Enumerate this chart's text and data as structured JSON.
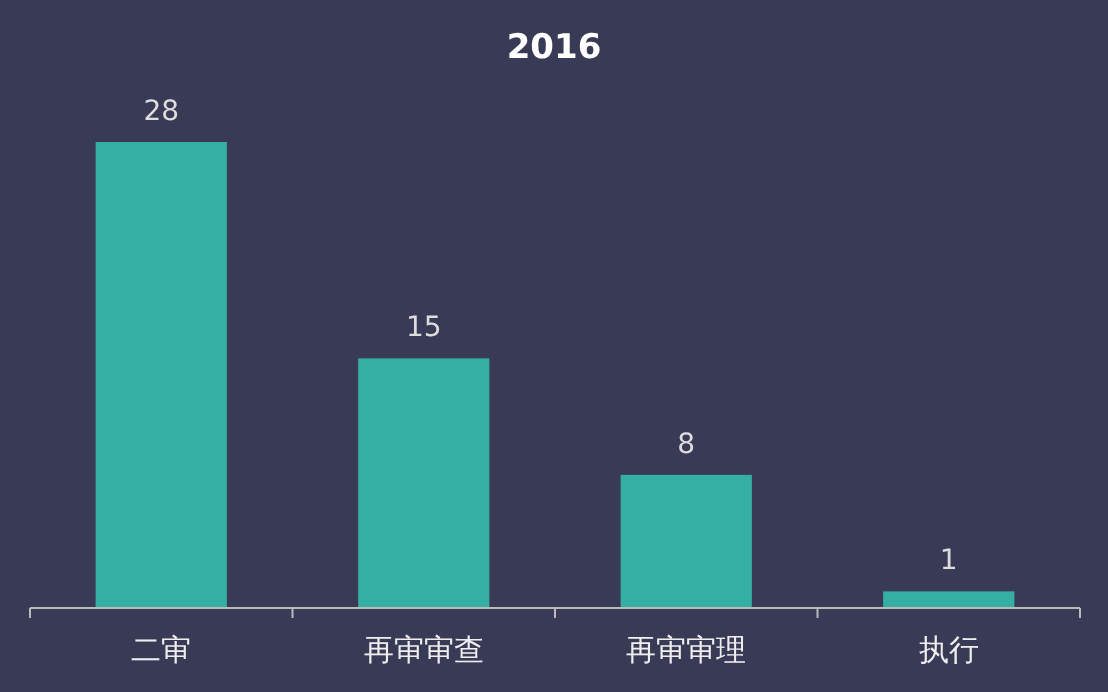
{
  "chart_data": {
    "type": "bar",
    "title": "2016",
    "categories": [
      "二审",
      "再审审查",
      "再审审理",
      "执行"
    ],
    "values": [
      28,
      15,
      8,
      1
    ],
    "color": "#35afa3",
    "data_labels": true
  }
}
